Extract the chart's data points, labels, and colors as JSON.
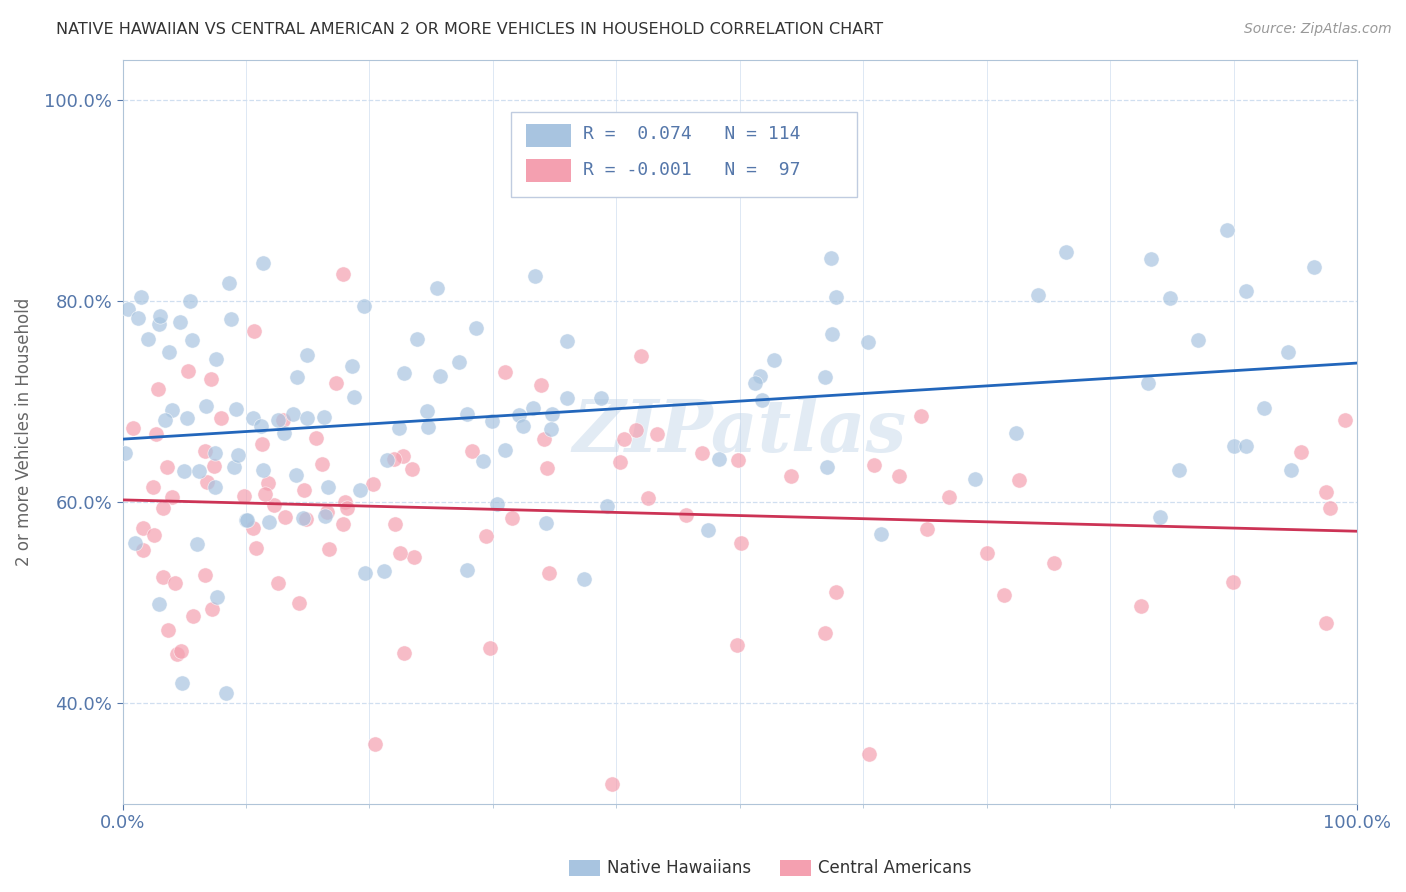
{
  "title": "NATIVE HAWAIIAN VS CENTRAL AMERICAN 2 OR MORE VEHICLES IN HOUSEHOLD CORRELATION CHART",
  "source": "Source: ZipAtlas.com",
  "ylabel": "2 or more Vehicles in Household",
  "yticks_labels": [
    "40.0%",
    "60.0%",
    "80.0%",
    "100.0%"
  ],
  "ytick_vals": [
    0.4,
    0.6,
    0.8,
    1.0
  ],
  "xlim": [
    0,
    1
  ],
  "ylim": [
    0.3,
    1.04
  ],
  "legend_line1": "R =  0.074  N = 114",
  "legend_line2": "R = -0.001  N =  97",
  "blue_color": "#a8c4e0",
  "pink_color": "#f4a0b0",
  "line_blue": "#2266bb",
  "line_pink": "#cc3355",
  "title_color": "#333333",
  "axis_label_color": "#5577aa",
  "grid_color": "#d0dff0",
  "watermark": "ZIPatlas",
  "legend_box_color": "#e8eef8",
  "legend_border_color": "#b8cce0"
}
